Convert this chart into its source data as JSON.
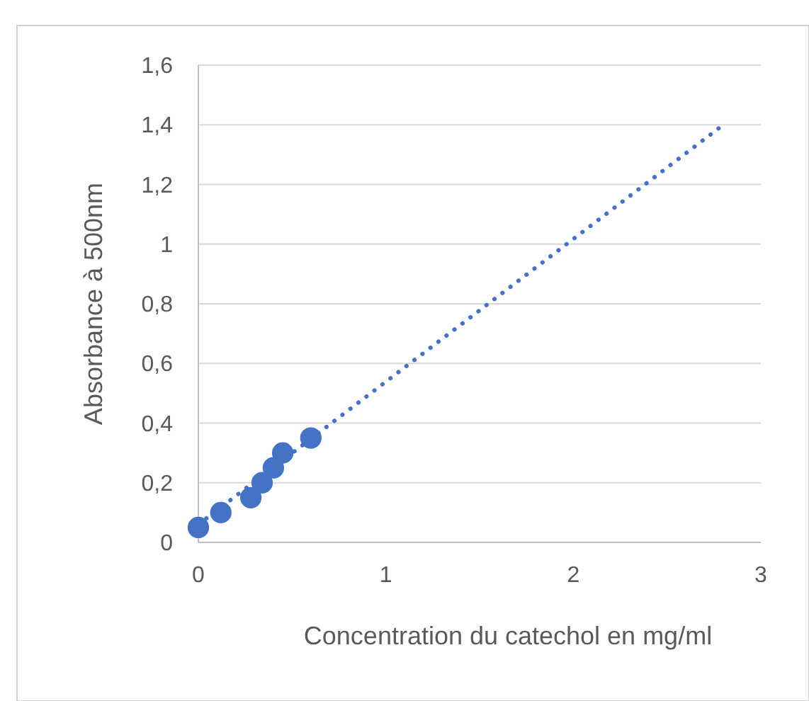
{
  "chart_data": {
    "type": "scatter",
    "xlabel": "Concentration du catechol en mg/ml",
    "ylabel": "Absorbance à 500nm",
    "x": [
      0,
      0.12,
      0.28,
      0.34,
      0.4,
      0.45,
      0.6
    ],
    "series": [
      {
        "color": "#4472c4",
        "values": [
          0.05,
          0.1,
          0.15,
          0.2,
          0.25,
          0.3,
          0.35
        ],
        "marker": "circle"
      },
      {
        "type": "line",
        "color": "#4472c4",
        "x": [
          0,
          2.8
        ],
        "values": [
          0.06,
          1.4
        ],
        "line_style": "dotted"
      }
    ],
    "xlim": [
      0,
      3
    ],
    "xticks": [
      0,
      1,
      2,
      3
    ],
    "ylim": [
      0,
      1.6
    ],
    "yticks": [
      0,
      {
        "value": 0.2,
        "label": "0,2"
      },
      {
        "value": 0.4,
        "label": "0,4"
      },
      {
        "value": 0.6,
        "label": "0,6"
      },
      {
        "value": 0.8,
        "label": "0,8"
      },
      1,
      {
        "value": 1.2,
        "label": "1,2"
      },
      {
        "value": 1.4,
        "label": "1,4"
      },
      {
        "value": 1.6,
        "label": "1,6"
      }
    ],
    "grid": "y"
  }
}
